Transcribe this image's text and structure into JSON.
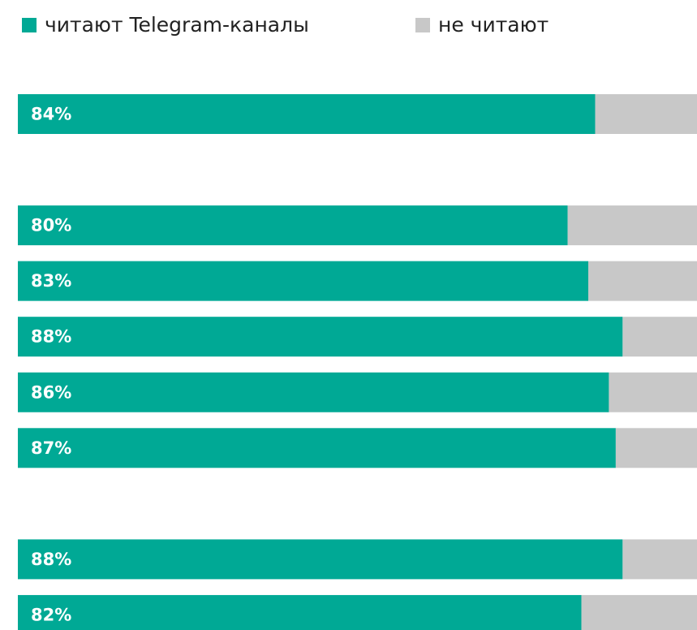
{
  "chart_data": {
    "type": "stacked_barh",
    "categories": [
      null,
      null,
      null,
      null,
      null,
      null,
      null,
      null,
      null,
      null
    ],
    "series": [
      {
        "name": "читают Telegram-каналы",
        "color": "#00a995",
        "values": [
          84,
          null,
          80,
          83,
          88,
          86,
          87,
          null,
          88,
          82
        ],
        "value_labels": [
          "84%",
          null,
          "80%",
          "83%",
          "88%",
          "86%",
          "87%",
          null,
          "88%",
          "82%"
        ]
      },
      {
        "name": "не читают",
        "color": "#c8c8c8",
        "values": [
          16,
          null,
          20,
          17,
          12,
          14,
          13,
          null,
          12,
          18
        ]
      }
    ],
    "xlim": [
      0,
      100
    ]
  }
}
